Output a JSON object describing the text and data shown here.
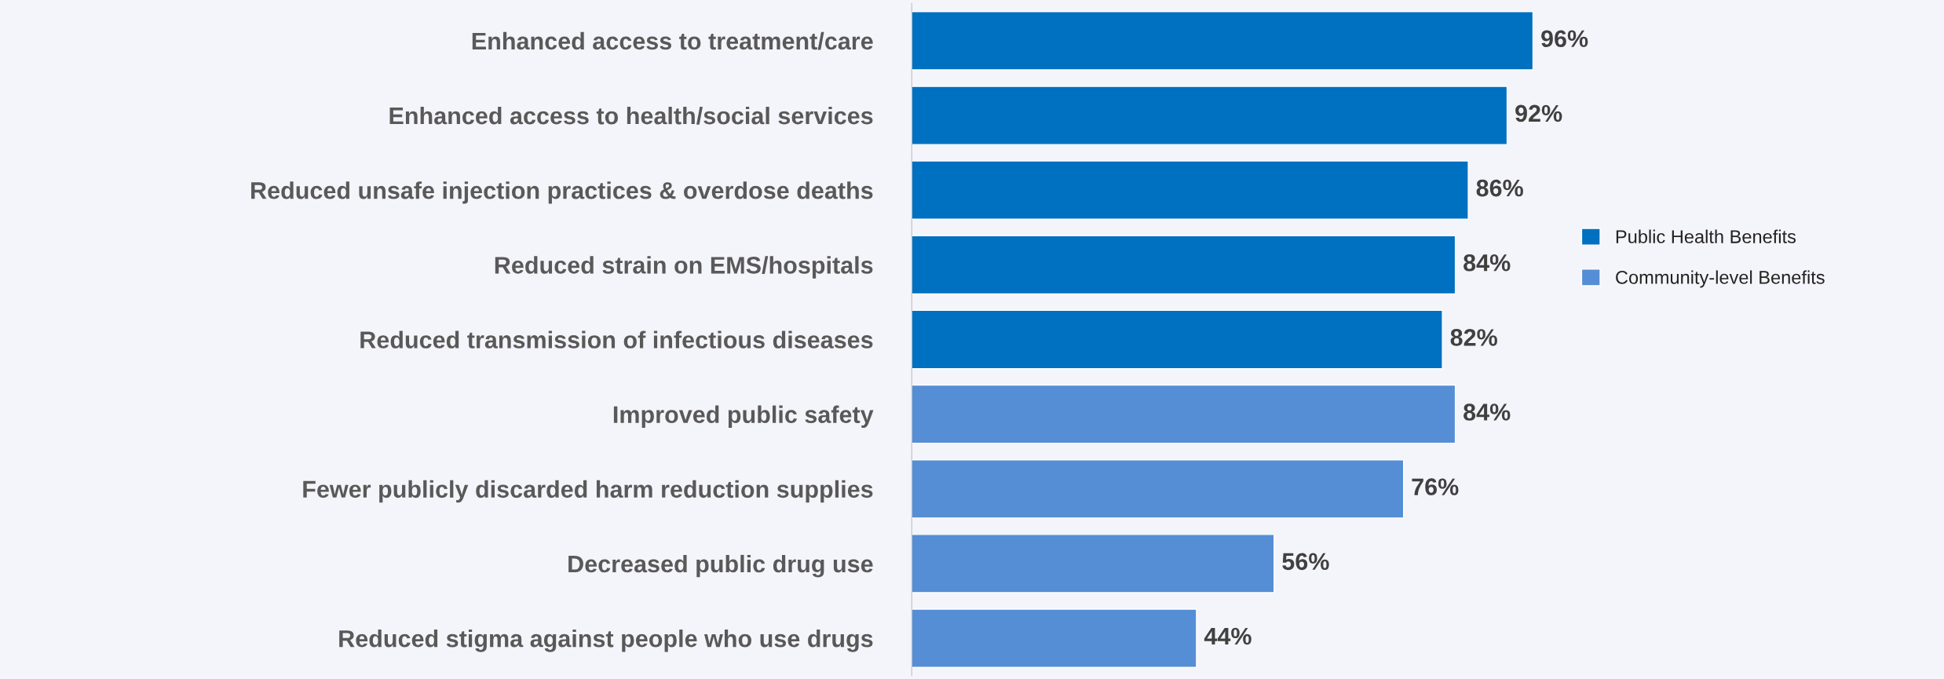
{
  "chart_data": {
    "type": "bar",
    "orientation": "horizontal",
    "categories": [
      "Enhanced access to treatment/care",
      "Enhanced access to health/social services",
      "Reduced unsafe injection practices & overdose deaths",
      "Reduced strain on EMS/hospitals",
      "Reduced transmission of infectious diseases",
      "Improved public safety",
      "Fewer publicly discarded harm reduction supplies",
      "Decreased public drug use",
      "Reduced stigma against people who use drugs"
    ],
    "series": [
      {
        "name": "Public Health Benefits",
        "color": "#0070c0",
        "values": [
          96,
          92,
          86,
          84,
          82,
          null,
          null,
          null,
          null
        ],
        "value_labels": [
          "96%",
          "92%",
          "86%",
          "84%",
          "82%",
          null,
          null,
          null,
          null
        ]
      },
      {
        "name": "Community-level Benefits",
        "color": "#558ed5",
        "values": [
          null,
          null,
          null,
          null,
          null,
          84,
          76,
          56,
          44
        ],
        "value_labels": [
          null,
          null,
          null,
          null,
          null,
          "84%",
          "76%",
          "56%",
          "44%"
        ]
      }
    ],
    "legend": "right",
    "grid": false
  }
}
